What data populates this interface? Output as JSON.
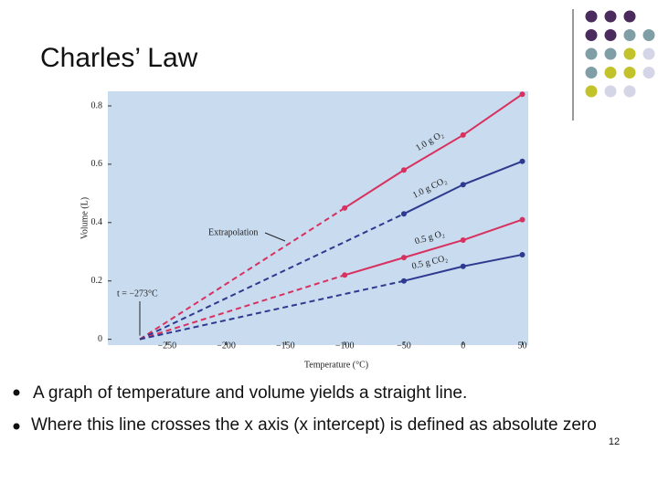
{
  "slide": {
    "title": "Charles’ Law",
    "bullets": [
      "A graph of temperature and volume yields a straight line.",
      "Where this line crosses the x axis (x intercept) is defined as absolute zero"
    ],
    "page_number": "12"
  },
  "chart_data": {
    "type": "line",
    "xlabel": "Temperature (°C)",
    "ylabel": "Volume (L)",
    "xlim": [
      -300,
      55
    ],
    "ylim": [
      -0.02,
      0.85
    ],
    "xticks": [
      {
        "value": -250,
        "label": "−250"
      },
      {
        "value": -200,
        "label": "−200"
      },
      {
        "value": -150,
        "label": "−150"
      },
      {
        "value": -100,
        "label": "−100"
      },
      {
        "value": -50,
        "label": "−50"
      },
      0,
      50
    ],
    "yticks": [
      0,
      0.2,
      0.4,
      0.6,
      0.8
    ],
    "background": "#c8dbef",
    "absolute_zero": {
      "value": -273,
      "label": "t = −273°C"
    },
    "extrapolation_label": "Extrapolation",
    "series": [
      {
        "name": "1.0 g O₂",
        "color": "#d8315f",
        "x": [
          -273,
          -100,
          -50,
          0,
          50
        ],
        "values": [
          0,
          0.45,
          0.58,
          0.7,
          0.84
        ]
      },
      {
        "name": "1.0 g CO₂",
        "color": "#2d3a8f",
        "x": [
          -273,
          -50,
          0,
          50
        ],
        "values": [
          0,
          0.43,
          0.53,
          0.61
        ]
      },
      {
        "name": "0.5 g O₂",
        "color": "#d8315f",
        "x": [
          -273,
          -100,
          -50,
          0,
          50
        ],
        "values": [
          0,
          0.22,
          0.28,
          0.34,
          0.41
        ]
      },
      {
        "name": "0.5 g CO₂",
        "color": "#2d3a8f",
        "x": [
          -273,
          -50,
          0,
          50
        ],
        "values": [
          0,
          0.2,
          0.25,
          0.29
        ]
      }
    ]
  }
}
